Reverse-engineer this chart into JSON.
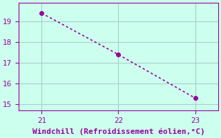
{
  "x": [
    21,
    22,
    23
  ],
  "y": [
    19.4,
    17.4,
    15.3
  ],
  "line_color": "#990099",
  "marker_color": "#990099",
  "bg_color": "#ccffee",
  "grid_color": "#aacccc",
  "xlabel": "Windchill (Refroidissement éolien,°C)",
  "xlabel_color": "#990099",
  "tick_color": "#990099",
  "xlim": [
    20.7,
    23.3
  ],
  "ylim": [
    14.7,
    19.9
  ],
  "yticks": [
    15,
    16,
    17,
    18,
    19
  ],
  "xticks": [
    21,
    22,
    23
  ],
  "xlabel_fontsize": 8,
  "tick_fontsize": 7.5,
  "line_width": 1.2,
  "marker_size": 4
}
